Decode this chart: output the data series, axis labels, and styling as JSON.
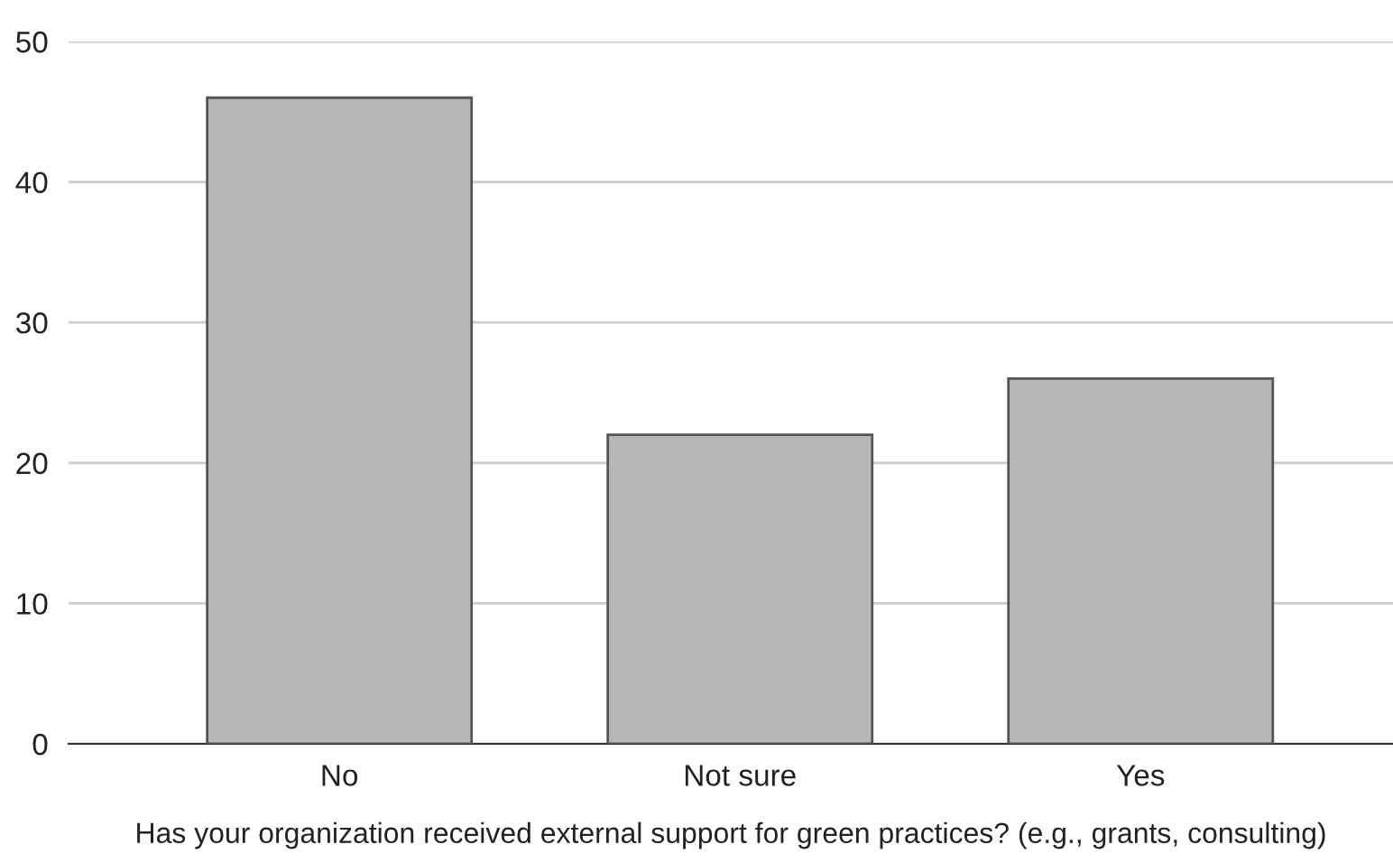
{
  "chart_data": {
    "type": "bar",
    "xlabel": "Has your organization received external support for green practices? (e.g., grants, consulting)",
    "categories": [
      "No",
      "Not sure",
      "Yes"
    ],
    "values": [
      46,
      22,
      26
    ],
    "color": "#b7b7b7",
    "ylim": [
      0,
      50
    ],
    "yticks": [
      0,
      10,
      20,
      30,
      40,
      50
    ],
    "grid": "y",
    "legend": false
  }
}
